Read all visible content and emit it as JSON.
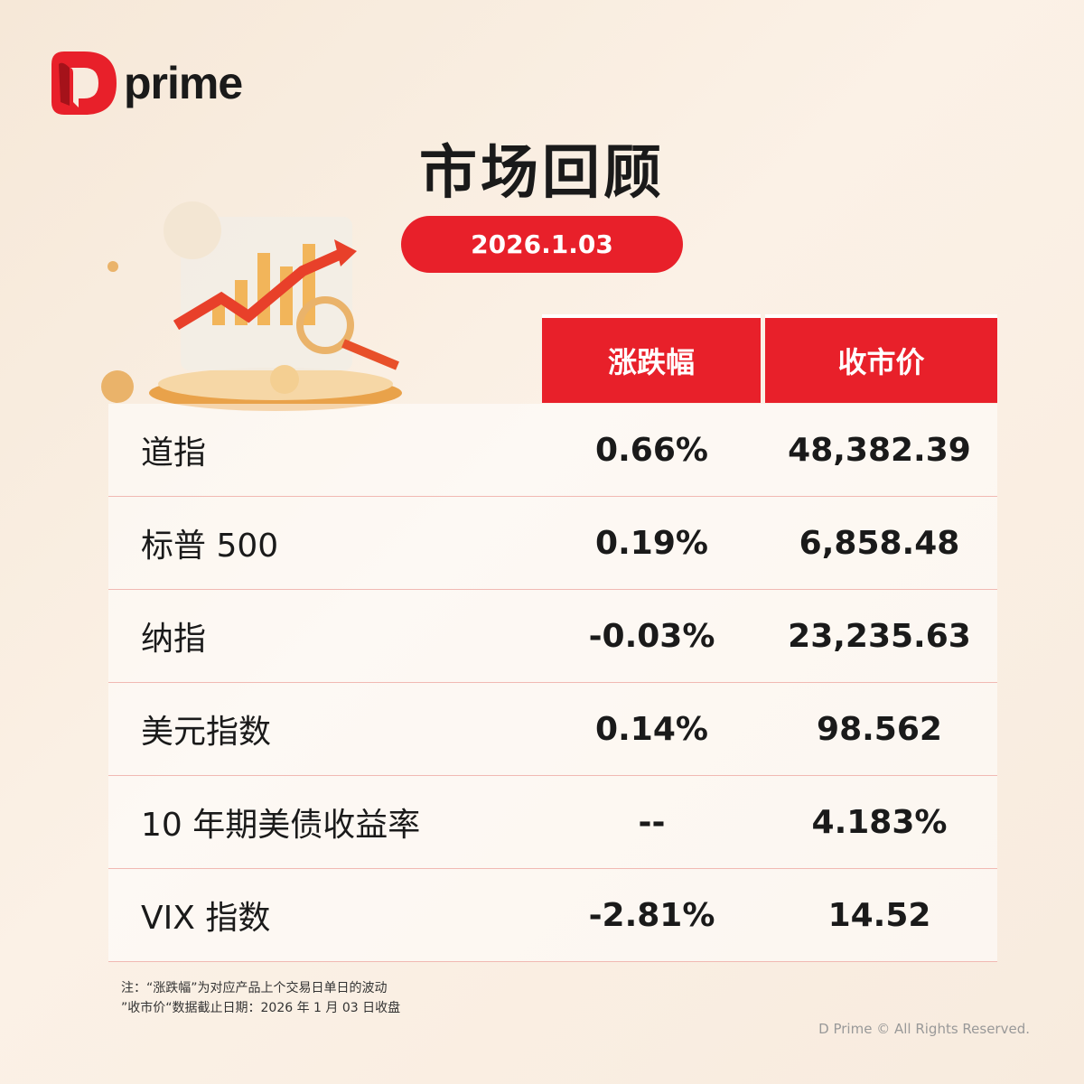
{
  "brand": {
    "name": "prime"
  },
  "title": "市场回顾",
  "date": "2026.1.03",
  "table": {
    "headers": [
      "涨跌幅",
      "收市价"
    ],
    "rows": [
      {
        "name": "道指",
        "change": "0.66%",
        "close": "48,382.39"
      },
      {
        "name": "标普 500",
        "change": "0.19%",
        "close": "6,858.48"
      },
      {
        "name": "纳指",
        "change": "-0.03%",
        "close": "23,235.63"
      },
      {
        "name": "美元指数",
        "change": "0.14%",
        "close": "98.562"
      },
      {
        "name": "10 年期美债收益率",
        "change": "--",
        "close": "4.183%"
      },
      {
        "name": "VIX 指数",
        "change": "-2.81%",
        "close": "14.52"
      }
    ]
  },
  "notes": [
    "注：“涨跌幅”为对应产品上个交易日单日的波动",
    "”收市价“数据截止日期：2026 年 1 月 03 日收盘"
  ],
  "copyright": "D Prime © All Rights Reserved.",
  "colors": {
    "accent": "#e8202a",
    "background": "#f8ebde"
  }
}
